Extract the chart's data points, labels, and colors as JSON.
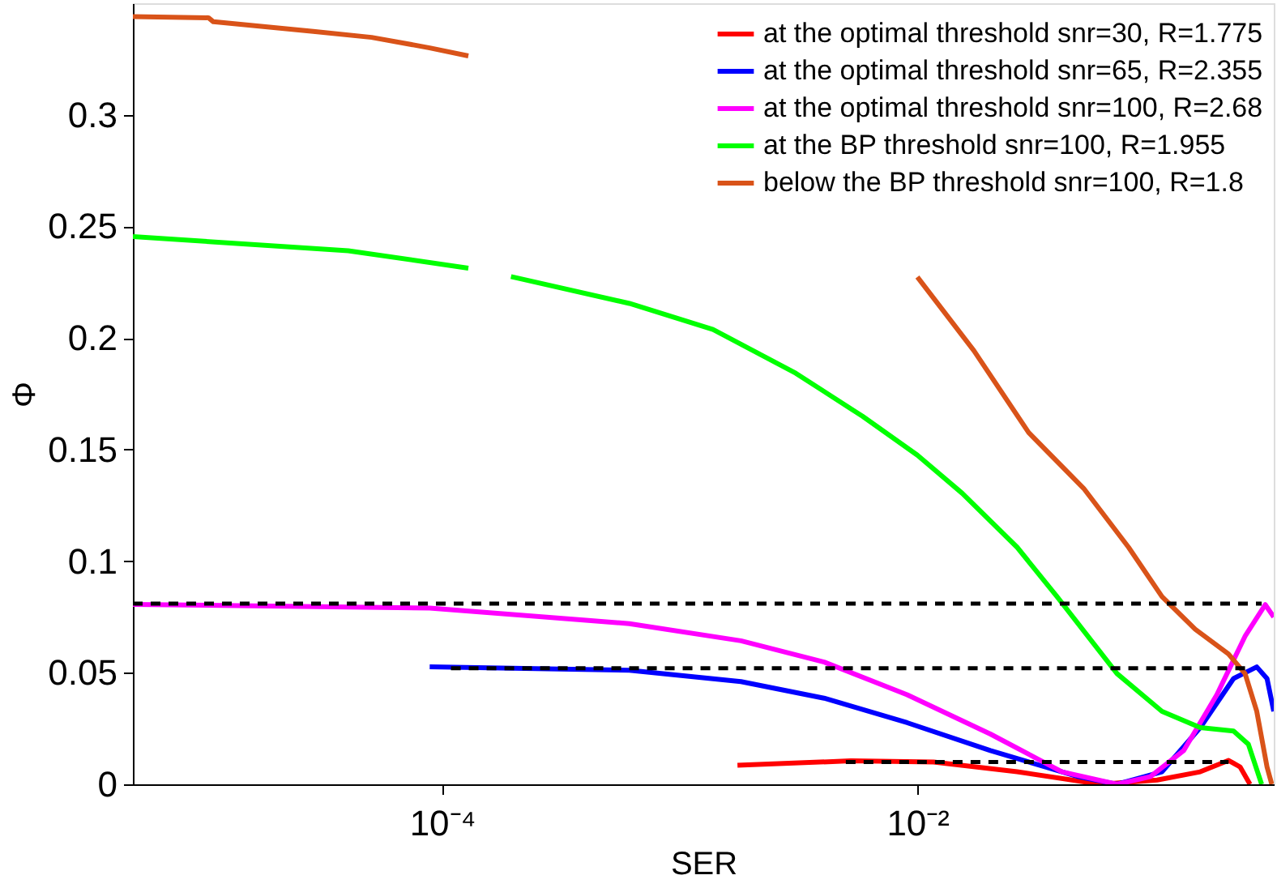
{
  "chart_data": {
    "type": "line",
    "xlabel": "SER",
    "ylabel": "Φ",
    "log": "x",
    "legend": "top right",
    "xlim": [
      5e-06,
      0.316
    ],
    "ylim": [
      0,
      0.35
    ],
    "xticks": [
      {
        "value": 0.0001,
        "label": "10⁻⁴"
      },
      {
        "value": 0.01,
        "label": "10⁻²"
      }
    ],
    "yticks": [
      0,
      0.05,
      0.1,
      0.15,
      0.2,
      0.25,
      0.3
    ],
    "series": [
      {
        "name": "at the optimal threshold snr=30, R=1.775",
        "color": "#ff0000",
        "x": [
          0.00175,
          0.00525,
          0.0117,
          0.0263,
          0.0589,
          0.102,
          0.155,
          0.204,
          0.228,
          0.251
        ],
        "values": [
          0.0085,
          0.0105,
          0.01,
          0.0056,
          0,
          0.0019,
          0.0056,
          0.0107,
          0.0078,
          0
        ]
      },
      {
        "name": "at the optimal threshold snr=65, R=2.355",
        "color": "#0000ff",
        "x": [
          8.87e-05,
          0.000614,
          0.00181,
          0.00405,
          0.00906,
          0.0203,
          0.0476,
          0.0692,
          0.107,
          0.155,
          0.214,
          0.268,
          0.296,
          0.316
        ],
        "values": [
          0.0526,
          0.0511,
          0.046,
          0.0386,
          0.0276,
          0.0151,
          0.0034,
          0,
          0.0056,
          0.0254,
          0.0474,
          0.0526,
          0.0474,
          0.0327
        ]
      },
      {
        "name": "at the optimal threshold snr=100, R=2.68",
        "color": "#ff00ff",
        "x": [
          5e-06,
          8.87e-05,
          0.000614,
          0.00181,
          0.00405,
          0.00906,
          0.0203,
          0.0406,
          0.0692,
          0.0955,
          0.132,
          0.182,
          0.24,
          0.291,
          0.316
        ],
        "values": [
          0.0806,
          0.079,
          0.072,
          0.0643,
          0.0548,
          0.0401,
          0.0225,
          0.0056,
          0,
          0.0034,
          0.0151,
          0.0401,
          0.0666,
          0.0805,
          0.075
        ]
      },
      {
        "name": "at the BP threshold snr=100, R=1.955",
        "color": "#00ff00",
        "x": [
          5e-06,
          4.03e-05,
          0.000129,
          0.000155,
          0.000195,
          0.000614,
          0.00138,
          0.00308,
          0.00588,
          0.01,
          0.01545,
          0.0263,
          0.0387,
          0.0692,
          0.107,
          0.155,
          0.214,
          0.247,
          0.281
        ],
        "values": [
          0.2454,
          0.2391,
          0.2313,
          null,
          0.2275,
          0.2155,
          0.2038,
          0.1842,
          0.1649,
          0.1475,
          0.1304,
          0.1062,
          0.0841,
          0.0496,
          0.0327,
          0.0254,
          0.0239,
          0.018,
          0
        ]
      },
      {
        "name": "below the BP threshold snr=100, R=1.8",
        "color": "#d95319",
        "x": [
          5e-06,
          1.04e-05,
          1.09e-05,
          2.87e-05,
          5.05e-05,
          8.87e-05,
          0.000129,
          0.001,
          0.01,
          0.0173,
          0.0294,
          0.0501,
          0.0774,
          0.107,
          0.1476,
          0.2037,
          0.2393,
          0.268,
          0.296,
          0.31
        ],
        "values": [
          0.344,
          0.3435,
          0.3417,
          0.3374,
          0.3347,
          0.33,
          0.3264,
          null,
          0.2273,
          0.1943,
          0.1576,
          0.1326,
          0.1062,
          0.0841,
          0.0695,
          0.0584,
          0.0496,
          0.0327,
          0.0078,
          0
        ]
      },
      {
        "color": "#000000",
        "line_style": "dashed",
        "x": [
          5e-06,
          0.281
        ],
        "values": [
          0.081,
          0.081
        ]
      },
      {
        "color": "#000000",
        "line_style": "dashed",
        "x": [
          0.000109,
          0.24
        ],
        "values": [
          0.052,
          0.052
        ]
      },
      {
        "color": "#000000",
        "line_style": "dashed",
        "x": [
          0.005,
          0.204
        ],
        "values": [
          0.01,
          0.01
        ]
      }
    ]
  }
}
